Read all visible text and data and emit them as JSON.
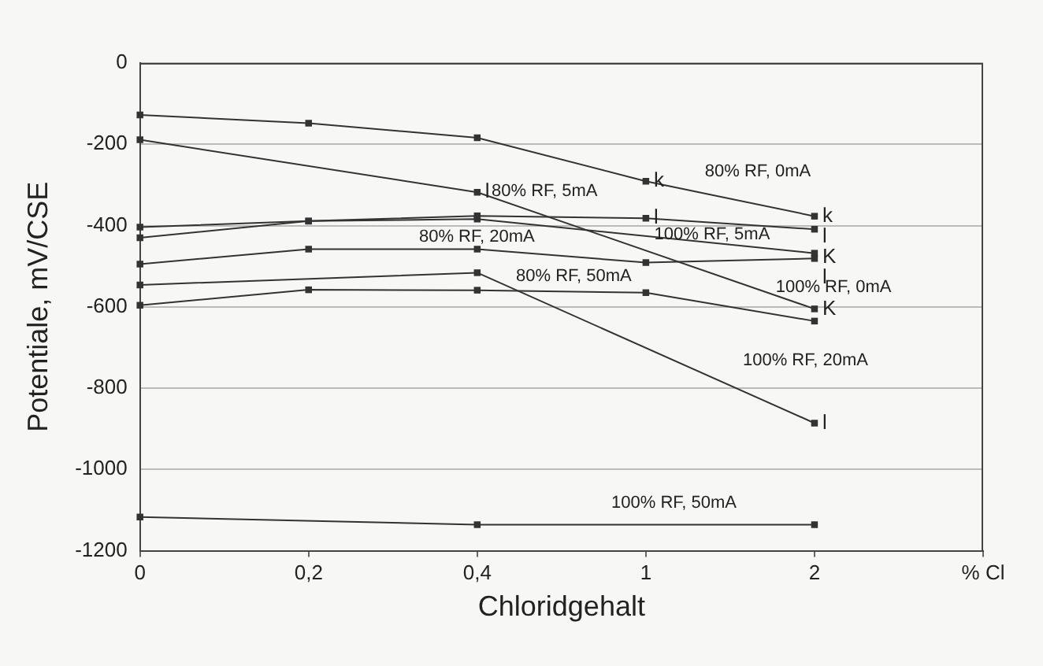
{
  "chart_data": {
    "type": "line",
    "xlabel": "Chloridgehalt",
    "ylabel": "Potentiale, mV/CSE",
    "categories": [
      "0",
      "0,2",
      "0,4",
      "1",
      "2",
      "% Cl"
    ],
    "ylim": [
      -1200,
      0
    ],
    "yticks": [
      0,
      -200,
      -400,
      -600,
      -800,
      -1000,
      -1200
    ],
    "grid": "y",
    "legend": false,
    "marker": "square",
    "line_style": "solid",
    "series": [
      {
        "color": "#333333",
        "values": [
          -128,
          -148,
          -184,
          -291,
          -377,
          null
        ],
        "value_labels": [
          null,
          null,
          null,
          "k",
          "k",
          null
        ]
      },
      {
        "color": "#333333",
        "values": [
          -189,
          null,
          -318,
          null,
          -605,
          null
        ],
        "value_labels": [
          null,
          null,
          "l",
          null,
          "K",
          null
        ]
      },
      {
        "color": "#333333",
        "values": [
          -404,
          -389,
          -376,
          -382,
          -409,
          null
        ],
        "value_labels": [
          null,
          null,
          null,
          "l",
          "l",
          null
        ]
      },
      {
        "color": "#333333",
        "values": [
          -430,
          -389,
          -384,
          null,
          -468,
          null
        ],
        "value_labels": [
          null,
          null,
          null,
          null,
          "K",
          null
        ]
      },
      {
        "color": "#333333",
        "values": [
          -495,
          -458,
          -458,
          -491,
          -481,
          null
        ],
        "value_labels": [
          null,
          null,
          null,
          null,
          "l",
          null
        ]
      },
      {
        "color": "#333333",
        "values": [
          -546,
          null,
          -516,
          null,
          -886,
          null
        ],
        "value_labels": [
          null,
          null,
          null,
          null,
          "l",
          null
        ]
      },
      {
        "color": "#333333",
        "values": [
          -596,
          -558,
          -559,
          -565,
          -635,
          null
        ]
      },
      {
        "color": "#333333",
        "values": [
          -1117,
          null,
          -1136,
          null,
          -1136,
          null
        ]
      }
    ],
    "annotations": [
      "80% RF, 0mA",
      "80% RF, 5mA",
      "80% RF, 20mA",
      "80% RF, 50mA",
      "100% RF, 5mA",
      "100% RF, 0mA",
      "100% RF, 20mA",
      "100% RF, 50mA"
    ]
  }
}
